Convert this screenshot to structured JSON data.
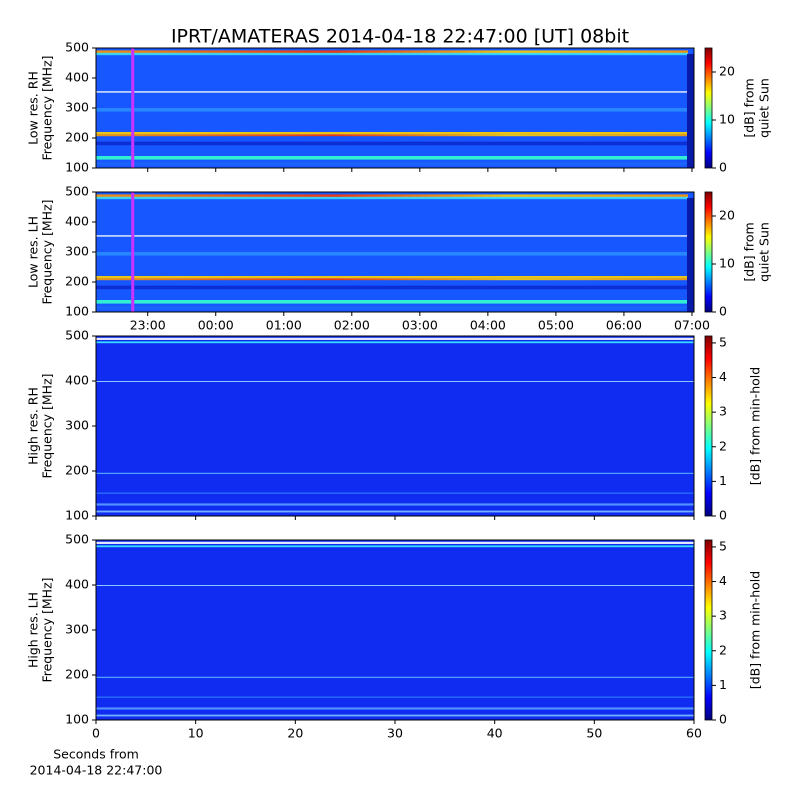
{
  "title": "IPRT/AMATERAS 2014-04-18 22:47:00 [UT]   08bit",
  "chart_data": [
    {
      "type": "heatmap",
      "colormap": "jet",
      "ylabel": [
        "Low res. RH",
        "Frequency [MHz]"
      ],
      "ylim": [
        100,
        500
      ],
      "yticks": [
        100,
        200,
        300,
        400,
        500
      ],
      "xlim": [
        22.24,
        31.03
      ],
      "xticks": [
        23,
        24,
        25,
        26,
        27,
        28,
        29,
        30,
        31
      ],
      "show_xtick_labels": false,
      "marker_x": 22.78,
      "marker_color": "#cc33ff",
      "colorbar": {
        "label": [
          "[dB] from",
          "quiet Sun"
        ],
        "lim": [
          0,
          25
        ],
        "ticks": [
          0,
          10,
          20
        ]
      }
    },
    {
      "type": "heatmap",
      "colormap": "jet",
      "ylabel": [
        "Low res. LH",
        "Frequency [MHz]"
      ],
      "ylim": [
        100,
        500
      ],
      "yticks": [
        100,
        200,
        300,
        400,
        500
      ],
      "xlim": [
        22.24,
        31.03
      ],
      "xticks": [
        {
          "value": 23,
          "label": "23:00"
        },
        {
          "value": 24,
          "label": "00:00"
        },
        {
          "value": 25,
          "label": "01:00"
        },
        {
          "value": 26,
          "label": "02:00"
        },
        {
          "value": 27,
          "label": "03:00"
        },
        {
          "value": 28,
          "label": "04:00"
        },
        {
          "value": 29,
          "label": "05:00"
        },
        {
          "value": 30,
          "label": "06:00"
        },
        {
          "value": 31,
          "label": "07:00"
        }
      ],
      "show_xtick_labels": true,
      "marker_x": 22.78,
      "marker_color": "#cc33ff",
      "colorbar": {
        "label": [
          "[dB] from",
          "quiet Sun"
        ],
        "lim": [
          0,
          25
        ],
        "ticks": [
          0,
          10,
          20
        ]
      }
    },
    {
      "type": "heatmap",
      "colormap": "jet",
      "ylabel": [
        "High res. RH",
        "Frequency [MHz]"
      ],
      "ylim": [
        100,
        500
      ],
      "yticks": [
        100,
        200,
        300,
        400,
        500
      ],
      "xlim": [
        0,
        60
      ],
      "xticks": [
        0,
        10,
        20,
        30,
        40,
        50,
        60
      ],
      "show_xtick_labels": false,
      "colorbar": {
        "label": [
          "[dB] from min-hold"
        ],
        "lim": [
          0,
          5.2
        ],
        "ticks": [
          0,
          1,
          2,
          3,
          4,
          5
        ]
      }
    },
    {
      "type": "heatmap",
      "colormap": "jet",
      "ylabel": [
        "High res. LH",
        "Frequency [MHz]"
      ],
      "ylim": [
        100,
        500
      ],
      "yticks": [
        100,
        200,
        300,
        400,
        500
      ],
      "xlim": [
        0,
        60
      ],
      "xticks": [
        0,
        10,
        20,
        30,
        40,
        50,
        60
      ],
      "show_xtick_labels": true,
      "xlabel": [
        "Seconds from",
        "2014-04-18 22:47:00"
      ],
      "colorbar": {
        "label": [
          "[dB] from min-hold"
        ],
        "lim": [
          0,
          5.2
        ],
        "ticks": [
          0,
          1,
          2,
          3,
          4,
          5
        ]
      }
    }
  ]
}
